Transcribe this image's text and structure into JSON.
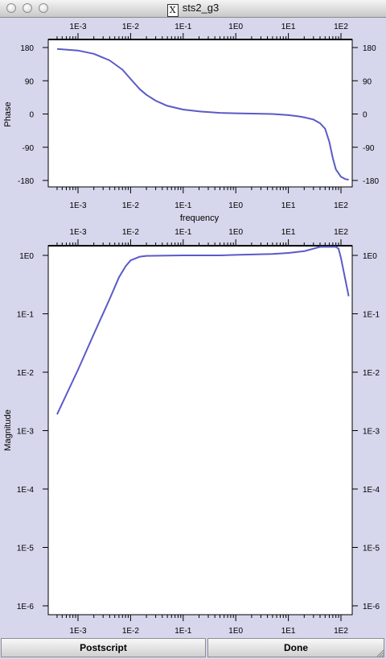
{
  "window": {
    "title": "sts2_g3",
    "x_icon_glyph": "X"
  },
  "buttons": {
    "postscript": "Postscript",
    "done": "Done"
  },
  "colors": {
    "line": "#5a5ac8",
    "background": "#d6d6ec",
    "plot_bg": "#ffffff"
  },
  "chart_data": [
    {
      "type": "line",
      "title": "",
      "xlabel": "frequency",
      "ylabel": "Phase",
      "xscale": "log",
      "xlim": [
        0.0004,
        150
      ],
      "ylim": [
        -180,
        180
      ],
      "x_ticks": [
        0.001,
        0.01,
        0.1,
        1,
        10,
        100
      ],
      "x_tick_labels": [
        "1E-3",
        "1E-2",
        "1E-1",
        "1E0",
        "1E1",
        "1E2"
      ],
      "y_ticks": [
        180,
        90,
        0,
        -90,
        -180
      ],
      "y_tick_labels": [
        "180",
        "90",
        "0",
        "-90",
        "-180"
      ],
      "series": [
        {
          "x": [
            0.0004,
            0.001,
            0.002,
            0.004,
            0.007,
            0.01,
            0.015,
            0.02,
            0.03,
            0.05,
            0.1,
            0.2,
            0.5,
            1,
            2,
            5,
            10,
            15,
            20,
            30,
            40,
            50,
            60,
            70,
            80,
            100,
            120,
            140
          ],
          "y": [
            176,
            172,
            163,
            145,
            120,
            95,
            67,
            52,
            36,
            22,
            12,
            7,
            3,
            2,
            1,
            0,
            -3,
            -6,
            -9,
            -15,
            -25,
            -40,
            -75,
            -120,
            -150,
            -170,
            -176,
            -178
          ]
        }
      ],
      "grid": false
    },
    {
      "type": "line",
      "title": "",
      "xlabel": "",
      "ylabel": "Magnitude",
      "xscale": "log",
      "yscale": "log",
      "xlim": [
        0.0004,
        150
      ],
      "ylim": [
        1e-06,
        1.4
      ],
      "x_ticks": [
        0.001,
        0.01,
        0.1,
        1,
        10,
        100
      ],
      "x_tick_labels": [
        "1E-3",
        "1E-2",
        "1E-1",
        "1E0",
        "1E1",
        "1E2"
      ],
      "y_ticks": [
        1,
        0.1,
        0.01,
        0.001,
        0.0001,
        1e-05,
        1e-06
      ],
      "y_tick_labels": [
        "1E0",
        "1E-1",
        "1E-2",
        "1E-3",
        "1E-4",
        "1E-5",
        "1E-6"
      ],
      "series": [
        {
          "x": [
            0.0004,
            0.001,
            0.002,
            0.004,
            0.006,
            0.008,
            0.01,
            0.015,
            0.02,
            0.05,
            0.1,
            0.5,
            1,
            5,
            10,
            20,
            30,
            40,
            50,
            60,
            70,
            80,
            90,
            100,
            120,
            140
          ],
          "y": [
            0.0019,
            0.011,
            0.045,
            0.18,
            0.42,
            0.65,
            0.82,
            0.95,
            0.98,
            0.99,
            1.0,
            1.0,
            1.02,
            1.06,
            1.1,
            1.18,
            1.3,
            1.4,
            1.4,
            1.4,
            1.4,
            1.4,
            1.3,
            0.9,
            0.4,
            0.2
          ]
        }
      ],
      "grid": false
    }
  ]
}
